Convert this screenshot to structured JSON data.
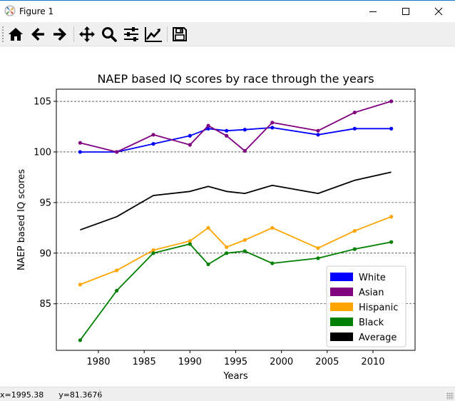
{
  "window": {
    "title": "Figure 1",
    "controls": {
      "minimize_icon": "minimize-icon",
      "maximize_icon": "maximize-icon",
      "close_icon": "close-icon"
    }
  },
  "toolbar": {
    "tools": [
      {
        "name": "home",
        "icon": "home-icon"
      },
      {
        "name": "back",
        "icon": "arrow-left-icon"
      },
      {
        "name": "forward",
        "icon": "arrow-right-icon"
      },
      {
        "name": "pan",
        "icon": "move-icon"
      },
      {
        "name": "zoom",
        "icon": "magnifier-icon"
      },
      {
        "name": "subplots",
        "icon": "sliders-icon"
      },
      {
        "name": "edit-axis",
        "icon": "line-chart-icon"
      },
      {
        "name": "save",
        "icon": "floppy-disk-icon"
      }
    ]
  },
  "status": {
    "x": "x=1995.38",
    "y": "y=81.3676"
  },
  "chart_data": {
    "type": "line",
    "title": "NAEP based IQ scores by race through the years",
    "xlabel": "Years",
    "ylabel": "NAEP based IQ scores",
    "xlim": [
      1975.4,
      2014.6
    ],
    "ylim": [
      80.4,
      106.2
    ],
    "xticks": [
      1980,
      1985,
      1990,
      1995,
      2000,
      2005,
      2010
    ],
    "yticks": [
      85,
      90,
      95,
      100,
      105
    ],
    "grid": "horizontal dashed",
    "legend": "lower-right",
    "series": [
      {
        "name": "White",
        "color": "#0000ff",
        "markers": true,
        "x": [
          1978,
          1982,
          1986,
          1990,
          1992,
          1994,
          1996,
          1999,
          2004,
          2008,
          2012
        ],
        "values": [
          100.0,
          100.0,
          100.8,
          101.6,
          102.3,
          102.1,
          102.2,
          102.4,
          101.7,
          102.3,
          102.3
        ]
      },
      {
        "name": "Asian",
        "color": "#800080",
        "markers": true,
        "x": [
          1978,
          1982,
          1986,
          1990,
          1992,
          1994,
          1996,
          1999,
          2004,
          2008,
          2012
        ],
        "values": [
          100.9,
          100.0,
          101.7,
          100.7,
          102.6,
          101.6,
          100.1,
          102.9,
          102.1,
          103.9,
          105.0
        ]
      },
      {
        "name": "Hispanic",
        "color": "#ffa500",
        "markers": true,
        "x": [
          1978,
          1982,
          1986,
          1990,
          1992,
          1994,
          1996,
          1999,
          2004,
          2008,
          2012
        ],
        "values": [
          86.9,
          88.3,
          90.3,
          91.2,
          92.5,
          90.6,
          91.3,
          92.5,
          90.5,
          92.2,
          93.6
        ]
      },
      {
        "name": "Black",
        "color": "#008000",
        "markers": true,
        "x": [
          1978,
          1982,
          1986,
          1990,
          1992,
          1994,
          1996,
          1999,
          2004,
          2008,
          2012
        ],
        "values": [
          81.4,
          86.3,
          90.0,
          90.9,
          88.9,
          90.0,
          90.2,
          89.0,
          89.5,
          90.4,
          91.1
        ]
      },
      {
        "name": "Average",
        "color": "#000000",
        "markers": false,
        "x": [
          1978,
          1982,
          1986,
          1990,
          1992,
          1994,
          1996,
          1999,
          2004,
          2008,
          2012
        ],
        "values": [
          92.3,
          93.6,
          95.7,
          96.1,
          96.6,
          96.1,
          95.9,
          96.7,
          95.9,
          97.2,
          98.0
        ]
      }
    ]
  }
}
